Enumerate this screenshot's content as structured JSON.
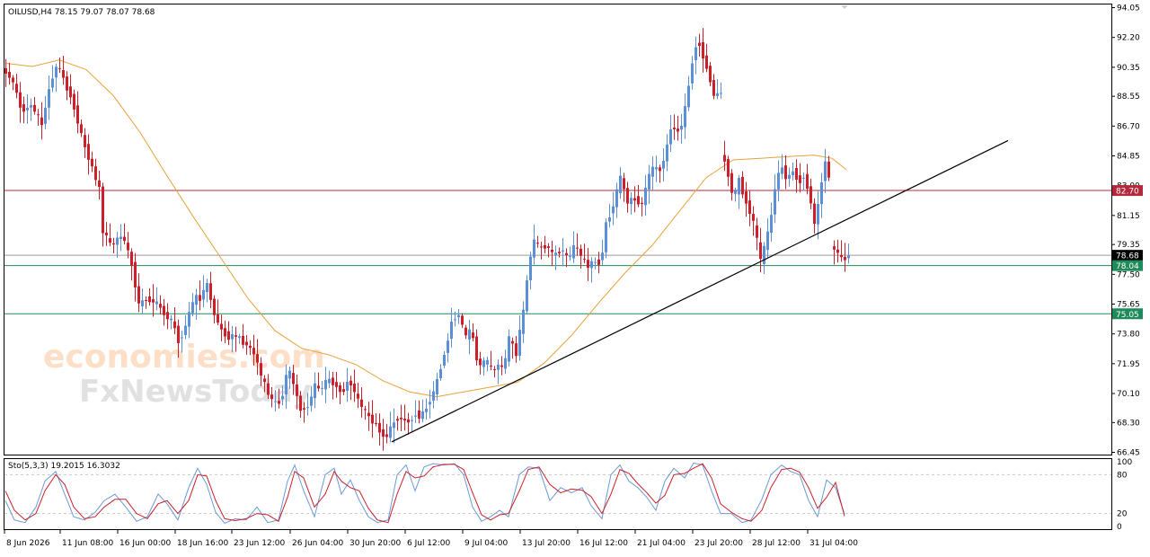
{
  "window": {
    "symbol_info": "OILUSD,H4  78.15 79.07 78.07 78.68"
  },
  "watermark": {
    "line1": "economies.com",
    "line2": "FxNewsToday"
  },
  "colors": {
    "bull": "#5b8fd6",
    "bear": "#cc1f2a",
    "ma": "#e8a13a",
    "resistance": "#b3283a",
    "support": "#1f8a5a",
    "current": "#9a9a9a",
    "trendline": "#000000",
    "stoch_k": "#6a9bd8",
    "stoch_d": "#cc1f2a",
    "grid": "#c8c8c8"
  },
  "chart_data": [
    {
      "type": "candlestick",
      "title": "OILUSD,H4",
      "ylim": [
        66.45,
        94.05
      ],
      "y_ticks": [
        "94.05",
        "92.20",
        "90.35",
        "88.55",
        "86.70",
        "84.85",
        "83.00",
        "81.15",
        "79.35",
        "77.50",
        "75.65",
        "73.80",
        "71.95",
        "70.10",
        "68.30",
        "66.45"
      ],
      "x_ticks": [
        "8 Jun 2026",
        "11 Jun 08:00",
        "16 Jun 00:00",
        "18 Jun 16:00",
        "23 Jun 12:00",
        "26 Jun 04:00",
        "30 Jun 20:00",
        "6 Jul 12:00",
        "9 Jul 04:00",
        "13 Jul 20:00",
        "16 Jul 12:00",
        "21 Jul 04:00",
        "23 Jul 20:00",
        "28 Jul 12:00",
        "31 Jul 04:00"
      ],
      "price_path": [
        [
          0,
          90.2
        ],
        [
          10,
          89.4
        ],
        [
          20,
          87.6
        ],
        [
          30,
          88.0
        ],
        [
          42,
          86.8
        ],
        [
          52,
          89.5
        ],
        [
          60,
          90.6
        ],
        [
          66,
          89.6
        ],
        [
          76,
          88.3
        ],
        [
          86,
          86.1
        ],
        [
          98,
          84.1
        ],
        [
          106,
          82.8
        ],
        [
          110,
          80.2
        ],
        [
          120,
          79.2
        ],
        [
          128,
          79.9
        ],
        [
          134,
          79.6
        ],
        [
          142,
          78.1
        ],
        [
          150,
          75.6
        ],
        [
          158,
          76.0
        ],
        [
          166,
          75.8
        ],
        [
          172,
          75.6
        ],
        [
          180,
          74.9
        ],
        [
          188,
          74.5
        ],
        [
          194,
          73.4
        ],
        [
          200,
          73.9
        ],
        [
          206,
          75.1
        ],
        [
          212,
          76.1
        ],
        [
          218,
          76.0
        ],
        [
          226,
          76.9
        ],
        [
          234,
          75.0
        ],
        [
          242,
          74.0
        ],
        [
          250,
          73.6
        ],
        [
          258,
          73.7
        ],
        [
          266,
          73.3
        ],
        [
          274,
          72.9
        ],
        [
          280,
          72.4
        ],
        [
          286,
          71.2
        ],
        [
          294,
          70.1
        ],
        [
          300,
          69.5
        ],
        [
          308,
          69.6
        ],
        [
          316,
          71.7
        ],
        [
          322,
          70.7
        ],
        [
          330,
          69.1
        ],
        [
          338,
          69.3
        ],
        [
          346,
          70.6
        ],
        [
          352,
          70.3
        ],
        [
          360,
          71.0
        ],
        [
          368,
          70.7
        ],
        [
          376,
          70.1
        ],
        [
          384,
          71.0
        ],
        [
          392,
          69.9
        ],
        [
          400,
          69.1
        ],
        [
          408,
          68.5
        ],
        [
          416,
          68.0
        ],
        [
          424,
          67.3
        ],
        [
          430,
          67.9
        ],
        [
          436,
          68.6
        ],
        [
          444,
          68.5
        ],
        [
          452,
          68.3
        ],
        [
          458,
          68.9
        ],
        [
          464,
          68.6
        ],
        [
          472,
          69.5
        ],
        [
          480,
          70.4
        ],
        [
          486,
          71.8
        ],
        [
          492,
          72.9
        ],
        [
          498,
          74.6
        ],
        [
          506,
          75.0
        ],
        [
          514,
          73.6
        ],
        [
          520,
          74.1
        ],
        [
          528,
          71.7
        ],
        [
          536,
          72.2
        ],
        [
          544,
          71.4
        ],
        [
          550,
          71.9
        ],
        [
          556,
          71.6
        ],
        [
          562,
          73.5
        ],
        [
          570,
          72.6
        ],
        [
          578,
          75.2
        ],
        [
          584,
          78.1
        ],
        [
          590,
          79.6
        ],
        [
          596,
          79.1
        ],
        [
          604,
          79.3
        ],
        [
          612,
          78.6
        ],
        [
          620,
          79.1
        ],
        [
          628,
          78.4
        ],
        [
          636,
          79.4
        ],
        [
          642,
          78.6
        ],
        [
          650,
          78.0
        ],
        [
          656,
          78.3
        ],
        [
          664,
          78.2
        ],
        [
          670,
          80.6
        ],
        [
          678,
          81.8
        ],
        [
          686,
          83.5
        ],
        [
          694,
          82.0
        ],
        [
          702,
          82.2
        ],
        [
          710,
          81.8
        ],
        [
          716,
          83.4
        ],
        [
          722,
          84.1
        ],
        [
          730,
          84.0
        ],
        [
          736,
          84.9
        ],
        [
          742,
          86.6
        ],
        [
          750,
          86.4
        ],
        [
          756,
          87.0
        ],
        [
          762,
          89.3
        ],
        [
          768,
          91.3
        ],
        [
          772,
          92.2
        ],
        [
          778,
          91.0
        ],
        [
          784,
          90.0
        ],
        [
          790,
          88.6
        ],
        [
          798,
          88.8
        ]
      ],
      "price_path_2": [
        [
          800,
          84.9
        ],
        [
          806,
          83.7
        ],
        [
          812,
          82.1
        ],
        [
          818,
          83.4
        ],
        [
          824,
          82.2
        ],
        [
          830,
          81.4
        ],
        [
          836,
          80.3
        ],
        [
          842,
          78.3
        ],
        [
          848,
          79.5
        ],
        [
          854,
          81.2
        ],
        [
          860,
          83.6
        ],
        [
          866,
          84.1
        ],
        [
          872,
          83.3
        ],
        [
          878,
          84.0
        ],
        [
          884,
          83.2
        ],
        [
          890,
          83.6
        ],
        [
          896,
          82.6
        ],
        [
          902,
          80.6
        ],
        [
          908,
          82.5
        ],
        [
          914,
          84.6
        ],
        [
          918,
          83.4
        ]
      ],
      "price_path_3": [
        [
          922,
          79.2
        ],
        [
          928,
          78.8
        ],
        [
          934,
          78.3
        ],
        [
          938,
          78.68
        ]
      ],
      "moving_average": [
        [
          0,
          90.6
        ],
        [
          30,
          90.4
        ],
        [
          60,
          90.8
        ],
        [
          90,
          90.2
        ],
        [
          120,
          88.6
        ],
        [
          150,
          86.3
        ],
        [
          180,
          83.6
        ],
        [
          210,
          81.0
        ],
        [
          240,
          78.5
        ],
        [
          270,
          76.0
        ],
        [
          300,
          74.0
        ],
        [
          330,
          72.9
        ],
        [
          360,
          72.5
        ],
        [
          390,
          71.9
        ],
        [
          420,
          70.9
        ],
        [
          450,
          70.2
        ],
        [
          480,
          69.9
        ],
        [
          510,
          70.2
        ],
        [
          540,
          70.5
        ],
        [
          570,
          70.8
        ],
        [
          600,
          72.0
        ],
        [
          630,
          73.7
        ],
        [
          660,
          75.7
        ],
        [
          690,
          77.6
        ],
        [
          720,
          79.3
        ],
        [
          750,
          81.4
        ],
        [
          780,
          83.5
        ],
        [
          810,
          84.6
        ],
        [
          840,
          84.7
        ],
        [
          870,
          84.8
        ],
        [
          900,
          84.9
        ],
        [
          920,
          84.7
        ],
        [
          936,
          84.0
        ]
      ],
      "levels": [
        {
          "label": "82.70",
          "value": 82.7,
          "role": "resistance"
        },
        {
          "label": "78.68",
          "value": 78.68,
          "role": "current"
        },
        {
          "label": "78.04",
          "value": 78.04,
          "role": "support"
        },
        {
          "label": "75.05",
          "value": 75.05,
          "role": "support"
        }
      ],
      "trendline": [
        [
          430,
          67.1
        ],
        [
          1116,
          85.8
        ]
      ]
    },
    {
      "type": "line",
      "title": "Sto(5,3,3) 19.2015 16.3032",
      "ylim": [
        0,
        100
      ],
      "y_ticks": [
        "100",
        "80",
        "20",
        "0"
      ],
      "k_path": [
        [
          0,
          40
        ],
        [
          10,
          10
        ],
        [
          22,
          6
        ],
        [
          34,
          30
        ],
        [
          44,
          70
        ],
        [
          56,
          85
        ],
        [
          66,
          50
        ],
        [
          76,
          15
        ],
        [
          88,
          10
        ],
        [
          100,
          22
        ],
        [
          110,
          40
        ],
        [
          122,
          50
        ],
        [
          134,
          30
        ],
        [
          146,
          8
        ],
        [
          158,
          15
        ],
        [
          170,
          50
        ],
        [
          180,
          35
        ],
        [
          192,
          10
        ],
        [
          204,
          60
        ],
        [
          214,
          90
        ],
        [
          224,
          65
        ],
        [
          234,
          22
        ],
        [
          244,
          5
        ],
        [
          256,
          12
        ],
        [
          268,
          10
        ],
        [
          280,
          30
        ],
        [
          292,
          6
        ],
        [
          304,
          10
        ],
        [
          314,
          70
        ],
        [
          322,
          95
        ],
        [
          332,
          55
        ],
        [
          344,
          15
        ],
        [
          356,
          80
        ],
        [
          366,
          90
        ],
        [
          374,
          50
        ],
        [
          384,
          72
        ],
        [
          394,
          40
        ],
        [
          404,
          15
        ],
        [
          414,
          6
        ],
        [
          426,
          10
        ],
        [
          436,
          80
        ],
        [
          446,
          95
        ],
        [
          456,
          55
        ],
        [
          466,
          92
        ],
        [
          476,
          97
        ],
        [
          488,
          95
        ],
        [
          500,
          97
        ],
        [
          510,
          80
        ],
        [
          520,
          30
        ],
        [
          530,
          8
        ],
        [
          540,
          15
        ],
        [
          550,
          25
        ],
        [
          560,
          15
        ],
        [
          572,
          80
        ],
        [
          582,
          92
        ],
        [
          594,
          90
        ],
        [
          606,
          40
        ],
        [
          618,
          60
        ],
        [
          630,
          52
        ],
        [
          642,
          60
        ],
        [
          652,
          32
        ],
        [
          664,
          12
        ],
        [
          674,
          80
        ],
        [
          684,
          95
        ],
        [
          694,
          70
        ],
        [
          704,
          60
        ],
        [
          714,
          45
        ],
        [
          724,
          25
        ],
        [
          734,
          70
        ],
        [
          744,
          90
        ],
        [
          756,
          75
        ],
        [
          766,
          98
        ],
        [
          776,
          95
        ],
        [
          786,
          55
        ],
        [
          796,
          20
        ],
        [
          808,
          20
        ],
        [
          820,
          6
        ],
        [
          830,
          10
        ],
        [
          842,
          42
        ],
        [
          852,
          80
        ],
        [
          864,
          95
        ],
        [
          874,
          85
        ],
        [
          884,
          80
        ],
        [
          894,
          40
        ],
        [
          904,
          15
        ],
        [
          914,
          72
        ],
        [
          924,
          60
        ],
        [
          934,
          19
        ]
      ],
      "d_path": [
        [
          0,
          55
        ],
        [
          10,
          25
        ],
        [
          22,
          10
        ],
        [
          34,
          20
        ],
        [
          44,
          55
        ],
        [
          56,
          80
        ],
        [
          66,
          65
        ],
        [
          76,
          30
        ],
        [
          88,
          12
        ],
        [
          100,
          15
        ],
        [
          110,
          30
        ],
        [
          122,
          42
        ],
        [
          134,
          42
        ],
        [
          146,
          20
        ],
        [
          158,
          12
        ],
        [
          170,
          35
        ],
        [
          180,
          40
        ],
        [
          192,
          20
        ],
        [
          204,
          40
        ],
        [
          214,
          80
        ],
        [
          224,
          78
        ],
        [
          234,
          40
        ],
        [
          244,
          12
        ],
        [
          256,
          9
        ],
        [
          268,
          12
        ],
        [
          280,
          20
        ],
        [
          292,
          18
        ],
        [
          304,
          8
        ],
        [
          314,
          45
        ],
        [
          322,
          85
        ],
        [
          332,
          75
        ],
        [
          344,
          30
        ],
        [
          356,
          50
        ],
        [
          366,
          85
        ],
        [
          374,
          70
        ],
        [
          384,
          60
        ],
        [
          394,
          55
        ],
        [
          404,
          28
        ],
        [
          414,
          10
        ],
        [
          426,
          6
        ],
        [
          436,
          50
        ],
        [
          446,
          85
        ],
        [
          456,
          75
        ],
        [
          466,
          78
        ],
        [
          476,
          92
        ],
        [
          488,
          96
        ],
        [
          500,
          96
        ],
        [
          510,
          88
        ],
        [
          520,
          52
        ],
        [
          530,
          18
        ],
        [
          540,
          10
        ],
        [
          550,
          18
        ],
        [
          560,
          20
        ],
        [
          572,
          55
        ],
        [
          582,
          88
        ],
        [
          594,
          92
        ],
        [
          606,
          65
        ],
        [
          618,
          52
        ],
        [
          630,
          58
        ],
        [
          642,
          56
        ],
        [
          652,
          46
        ],
        [
          664,
          20
        ],
        [
          674,
          50
        ],
        [
          684,
          88
        ],
        [
          694,
          82
        ],
        [
          704,
          66
        ],
        [
          714,
          52
        ],
        [
          724,
          36
        ],
        [
          734,
          48
        ],
        [
          744,
          80
        ],
        [
          756,
          82
        ],
        [
          766,
          90
        ],
        [
          776,
          97
        ],
        [
          786,
          75
        ],
        [
          796,
          35
        ],
        [
          808,
          22
        ],
        [
          820,
          12
        ],
        [
          830,
          8
        ],
        [
          842,
          25
        ],
        [
          852,
          60
        ],
        [
          864,
          88
        ],
        [
          874,
          90
        ],
        [
          884,
          84
        ],
        [
          894,
          60
        ],
        [
          904,
          28
        ],
        [
          914,
          45
        ],
        [
          924,
          68
        ],
        [
          934,
          16
        ]
      ],
      "levels": [
        80,
        20
      ]
    }
  ]
}
